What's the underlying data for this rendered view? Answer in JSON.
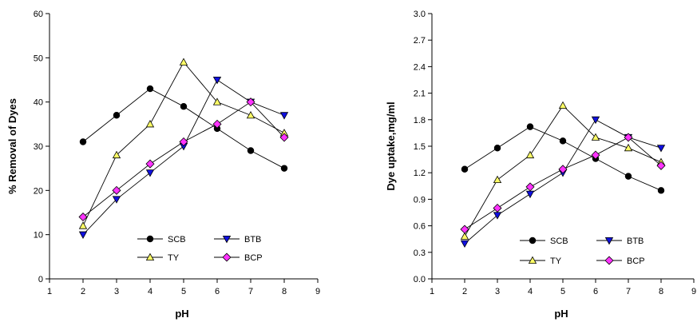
{
  "chart_data": [
    {
      "type": "line",
      "xlabel": "pH",
      "ylabel": "% Removal of Dyes",
      "xlim": [
        1,
        9
      ],
      "ylim": [
        0,
        60
      ],
      "xticks": [
        "1",
        "2",
        "3",
        "4",
        "5",
        "6",
        "7",
        "8",
        "9"
      ],
      "yticks": [
        "0",
        "10",
        "20",
        "30",
        "40",
        "50",
        "60"
      ],
      "grid": false,
      "legend_position": "bottom-right",
      "x": [
        2,
        3,
        4,
        5,
        6,
        7,
        8
      ],
      "series": [
        {
          "name": "SCB",
          "marker": "circle",
          "color": "#000000",
          "values": [
            31,
            37,
            43,
            39,
            34,
            29,
            25
          ]
        },
        {
          "name": "BTB",
          "marker": "triangle-down",
          "color": "#1010e0",
          "values": [
            10,
            18,
            24,
            30,
            45,
            40,
            37
          ]
        },
        {
          "name": "TY",
          "marker": "triangle-up",
          "color": "#ffff66",
          "values": [
            12,
            28,
            35,
            49,
            40,
            37,
            33
          ]
        },
        {
          "name": "BCP",
          "marker": "diamond",
          "color": "#ff33ff",
          "values": [
            14,
            20,
            26,
            31,
            35,
            40,
            32
          ]
        }
      ]
    },
    {
      "type": "line",
      "xlabel": "pH",
      "ylabel": "Dye uptake,mg/ml",
      "xlim": [
        1,
        9
      ],
      "ylim": [
        0.0,
        3.0
      ],
      "xticks": [
        "1",
        "2",
        "3",
        "4",
        "5",
        "6",
        "7",
        "8",
        "9"
      ],
      "yticks": [
        "0.0",
        "0.3",
        "0.6",
        "0.9",
        "1.2",
        "1.5",
        "1.8",
        "2.1",
        "2.4",
        "2.7",
        "3.0"
      ],
      "grid": false,
      "legend_position": "bottom-right",
      "x": [
        2,
        3,
        4,
        5,
        6,
        7,
        8
      ],
      "series": [
        {
          "name": "SCB",
          "marker": "circle",
          "color": "#000000",
          "values": [
            1.24,
            1.48,
            1.72,
            1.56,
            1.36,
            1.16,
            1.0
          ]
        },
        {
          "name": "BTB",
          "marker": "triangle-down",
          "color": "#1010e0",
          "values": [
            0.4,
            0.72,
            0.96,
            1.2,
            1.8,
            1.6,
            1.48
          ]
        },
        {
          "name": "TY",
          "marker": "triangle-up",
          "color": "#ffff66",
          "values": [
            0.48,
            1.12,
            1.4,
            1.96,
            1.6,
            1.48,
            1.32
          ]
        },
        {
          "name": "BCP",
          "marker": "diamond",
          "color": "#ff33ff",
          "values": [
            0.56,
            0.8,
            1.04,
            1.24,
            1.4,
            1.6,
            1.28
          ]
        }
      ]
    }
  ]
}
